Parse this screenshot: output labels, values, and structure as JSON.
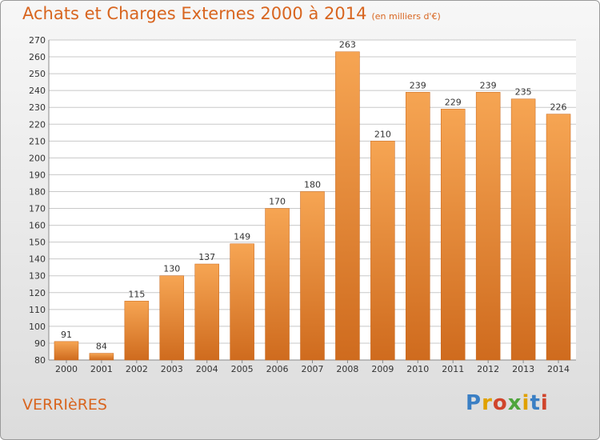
{
  "header": {
    "title": "Achats et Charges Externes 2000 à 2014",
    "subtitle": "(en milliers d'€)"
  },
  "footer": {
    "place": "VERRIèRES",
    "logo": "Proxiti"
  },
  "colors": {
    "bar_top": "#f6a553",
    "bar_bottom": "#cf6b1e",
    "text": "#d8651f",
    "grid": "#c8c8c8"
  },
  "chart_data": {
    "type": "bar",
    "title": "Achats et Charges Externes 2000 à 2014",
    "subtitle": "(en milliers d'€)",
    "categories": [
      "2000",
      "2001",
      "2002",
      "2003",
      "2004",
      "2005",
      "2006",
      "2007",
      "2008",
      "2009",
      "2010",
      "2011",
      "2012",
      "2013",
      "2014"
    ],
    "values": [
      91,
      84,
      115,
      130,
      137,
      149,
      170,
      180,
      263,
      210,
      239,
      229,
      239,
      235,
      226
    ],
    "ylim": [
      80,
      270
    ],
    "yticks": [
      80,
      90,
      100,
      110,
      120,
      130,
      140,
      150,
      160,
      170,
      180,
      190,
      200,
      210,
      220,
      230,
      240,
      250,
      260,
      270
    ],
    "grid": true,
    "data_labels": true
  }
}
